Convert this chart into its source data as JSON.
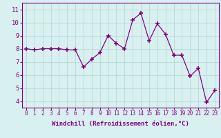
{
  "x": [
    0,
    1,
    2,
    3,
    4,
    5,
    6,
    7,
    8,
    9,
    10,
    11,
    12,
    13,
    14,
    15,
    16,
    17,
    18,
    19,
    20,
    21,
    22,
    23
  ],
  "y": [
    8.0,
    7.9,
    8.0,
    8.0,
    8.0,
    7.9,
    7.9,
    6.6,
    7.2,
    7.7,
    9.0,
    8.4,
    8.0,
    10.2,
    10.7,
    8.6,
    9.9,
    9.1,
    7.5,
    7.5,
    5.9,
    6.5,
    3.9,
    4.8
  ],
  "line_color": "#800080",
  "marker": "+",
  "marker_size": 4,
  "marker_lw": 1.2,
  "bg_color": "#d8f0f0",
  "grid_color": "#b8d8d8",
  "xlabel": "Windchill (Refroidissement éolien,°C)",
  "ylabel_ticks": [
    4,
    5,
    6,
    7,
    8,
    9,
    10,
    11
  ],
  "xlim": [
    -0.5,
    23.5
  ],
  "ylim": [
    3.5,
    11.5
  ],
  "xtick_labels": [
    "0",
    "1",
    "2",
    "3",
    "4",
    "5",
    "6",
    "7",
    "8",
    "9",
    "10",
    "11",
    "12",
    "13",
    "14",
    "15",
    "16",
    "17",
    "18",
    "19",
    "20",
    "21",
    "22",
    "23"
  ],
  "xlabel_fontsize": 6.5,
  "ytick_fontsize": 6.5,
  "xtick_fontsize": 5.5,
  "line_width": 0.9
}
